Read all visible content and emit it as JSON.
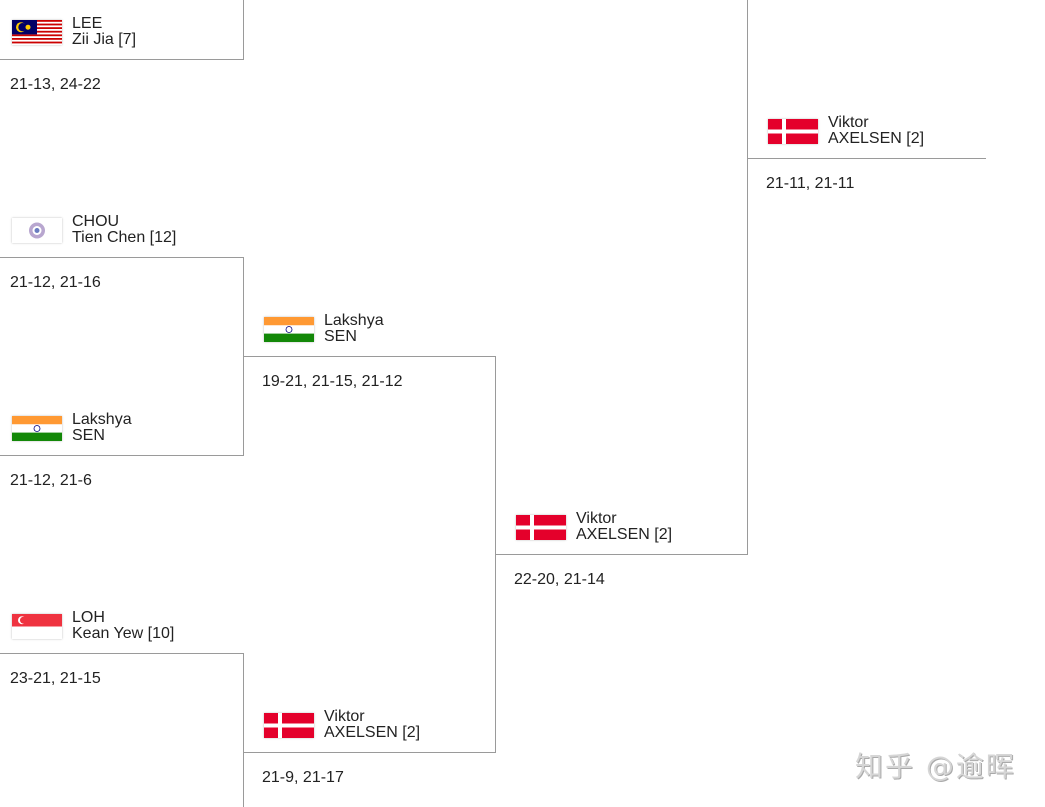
{
  "rounds": [
    [
      {
        "first": "LEE",
        "last": "Zii Jia [7]",
        "flag": "malaysia-flag",
        "score": "21-13, 24-22"
      },
      {
        "first": "CHOU",
        "last": "Tien Chen [12]",
        "flag": "chinese-taipei-flag",
        "score": "21-12, 21-16"
      },
      {
        "first": "Lakshya",
        "last": "SEN",
        "flag": "india-flag",
        "score": "21-12, 21-6"
      },
      {
        "first": "LOH",
        "last": "Kean Yew [10]",
        "flag": "singapore-flag",
        "score": "23-21, 21-15"
      }
    ],
    [
      {
        "first": "Lakshya",
        "last": "SEN",
        "flag": "india-flag",
        "score": "19-21, 21-15, 21-12"
      },
      {
        "first": "Viktor",
        "last": "AXELSEN [2]",
        "flag": "denmark-flag",
        "score": "21-9, 21-17"
      }
    ],
    [
      {
        "first": "Viktor",
        "last": "AXELSEN [2]",
        "flag": "denmark-flag",
        "score": "22-20, 21-14"
      }
    ],
    [
      {
        "first": "Viktor",
        "last": "AXELSEN [2]",
        "flag": "denmark-flag",
        "score": "21-11, 21-11"
      }
    ]
  ],
  "watermark": "知乎 @逾晖"
}
